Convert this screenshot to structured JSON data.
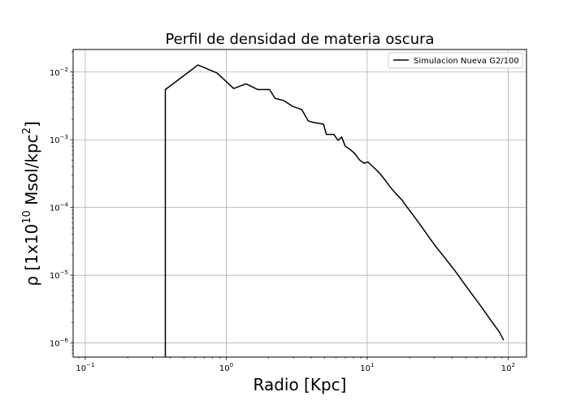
{
  "chart_data": {
    "type": "line",
    "title": "Perfil de densidad de materia oscura",
    "xlabel": "Radio [Kpc]",
    "ylabel_parts": [
      "ρ [1x10",
      "10",
      " Msol/kpc",
      "2",
      "]"
    ],
    "xscale": "log",
    "yscale": "log",
    "xlim": [
      0.082,
      135
    ],
    "ylim": [
      6.2e-07,
      0.0215
    ],
    "grid": true,
    "legend_position": "top-right",
    "x_ticks": [
      {
        "value": 0.1,
        "base": "10",
        "exp": "−1"
      },
      {
        "value": 1,
        "base": "10",
        "exp": "0"
      },
      {
        "value": 10,
        "base": "10",
        "exp": "1"
      },
      {
        "value": 100,
        "base": "10",
        "exp": "2"
      }
    ],
    "y_ticks": [
      {
        "value": 1e-06,
        "base": "10",
        "exp": "−6"
      },
      {
        "value": 1e-05,
        "base": "10",
        "exp": "−5"
      },
      {
        "value": 0.0001,
        "base": "10",
        "exp": "−4"
      },
      {
        "value": 0.001,
        "base": "10",
        "exp": "−3"
      },
      {
        "value": 0.01,
        "base": "10",
        "exp": "−2"
      }
    ],
    "series": [
      {
        "name": "Simulacion Nueva G2/100",
        "color": "#000000",
        "x": [
          0.37,
          0.37,
          0.63,
          0.86,
          1.13,
          1.38,
          1.68,
          2.03,
          2.22,
          2.55,
          2.97,
          3.43,
          3.82,
          4.16,
          4.9,
          5.13,
          5.8,
          6.21,
          6.59,
          7.0,
          7.5,
          8.14,
          8.86,
          9.55,
          10.1,
          11.0,
          12.1,
          13.3,
          14.6,
          16.0,
          17.6,
          19.3,
          21.2,
          23.3,
          25.6,
          28.1,
          30.9,
          33.9,
          37.2,
          40.9,
          44.9,
          49.3,
          54.2,
          59.5,
          65.4,
          71.8,
          78.9,
          86.6,
          93.0
        ],
        "y": [
          6.2e-07,
          0.0055,
          0.0127,
          0.0097,
          0.0057,
          0.0067,
          0.0055,
          0.0055,
          0.0041,
          0.0038,
          0.0031,
          0.0028,
          0.0019,
          0.0018,
          0.0017,
          0.0012,
          0.0012,
          0.00098,
          0.0011,
          0.0008,
          0.00073,
          0.00063,
          0.0005,
          0.00045,
          0.00047,
          0.0004,
          0.00033,
          0.00026,
          0.0002,
          0.00016,
          0.00013,
          0.0001,
          7.7e-05,
          5.9e-05,
          4.5e-05,
          3.4e-05,
          2.6e-05,
          2.05e-05,
          1.6e-05,
          1.25e-05,
          9.6e-06,
          7.3e-06,
          5.6e-06,
          4.3e-06,
          3.3e-06,
          2.5e-06,
          1.9e-06,
          1.45e-06,
          1.1e-06
        ]
      }
    ]
  }
}
